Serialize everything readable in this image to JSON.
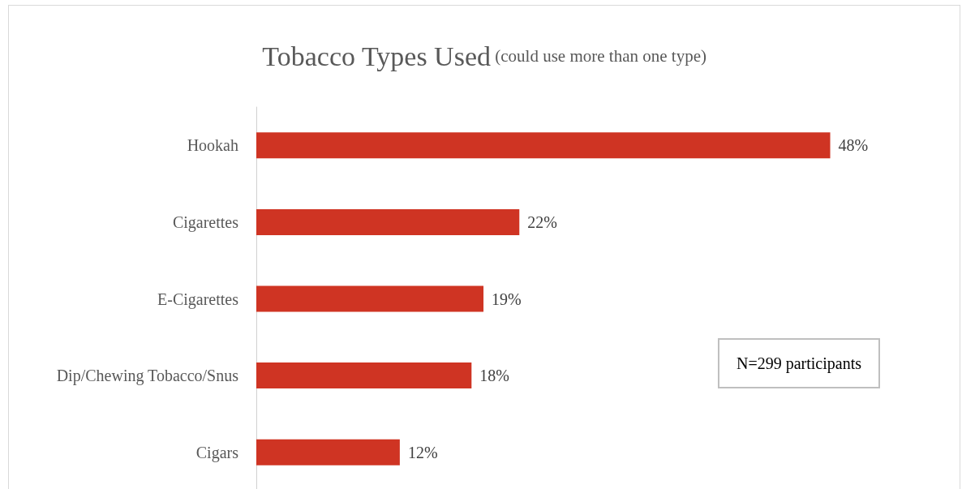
{
  "chart_data": {
    "type": "bar",
    "orientation": "horizontal",
    "title": "Tobacco Types Used",
    "subtitle": "(could use more than one type)",
    "categories": [
      "Hookah",
      "Cigarettes",
      "E-Cigarettes",
      "Dip/Chewing Tobacco/Snus",
      "Cigars"
    ],
    "values": [
      48,
      22,
      19,
      18,
      12
    ],
    "value_labels": [
      "48%",
      "22%",
      "19%",
      "18%",
      "12%"
    ],
    "color": "#cf3423",
    "annotations": [
      "N=299 participants"
    ]
  }
}
